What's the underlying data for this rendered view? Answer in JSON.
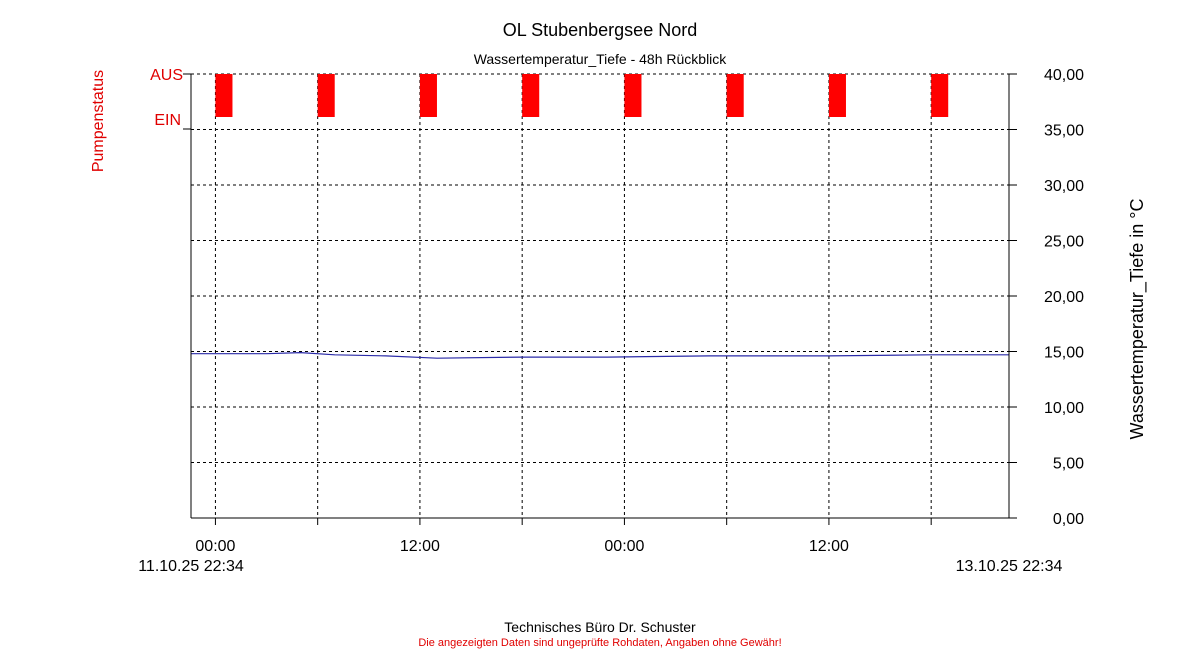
{
  "chart_data": {
    "type": "line",
    "title": "OL Stubenbergsee Nord",
    "subtitle": "Wassertemperatur_Tiefe - 48h Rückblick",
    "ylabel_right": "Wassertemperatur_Tiefe in °C",
    "ylabel_left": "Pumpenstatus",
    "ylim": [
      0,
      40
    ],
    "yticks": [
      "0,00",
      "5,00",
      "10,00",
      "15,00",
      "20,00",
      "25,00",
      "30,00",
      "35,00",
      "40,00"
    ],
    "xlim": [
      "11.10.25 22:34",
      "13.10.25 22:34"
    ],
    "xticks": [
      "00:00",
      "12:00",
      "00:00",
      "12:00"
    ],
    "x_start_label": "11.10.25 22:34",
    "x_end_label": "13.10.25 22:34",
    "grid": true,
    "status_labels": {
      "off": "AUS",
      "on": "EIN"
    },
    "series": [
      {
        "color": "#2a2aa8",
        "x": [
          "11.10.25 22:34",
          "12.10.25 03:00",
          "12.10.25 05:00",
          "12.10.25 07:00",
          "12.10.25 10:00",
          "12.10.25 13:00",
          "12.10.25 18:00",
          "12.10.25 23:00",
          "13.10.25 05:00",
          "13.10.25 12:00",
          "13.10.25 18:00",
          "13.10.25 22:34"
        ],
        "values": [
          14.8,
          14.8,
          14.9,
          14.7,
          14.6,
          14.4,
          14.5,
          14.5,
          14.6,
          14.6,
          14.7,
          14.7
        ]
      }
    ],
    "pump_status": {
      "color": "#ff0000",
      "description_values": "state per interval",
      "intervals": [
        {
          "start": "12.10.25 00:00",
          "end": "12.10.25 01:00",
          "state": "EIN"
        },
        {
          "start": "12.10.25 06:00",
          "end": "12.10.25 07:00",
          "state": "EIN"
        },
        {
          "start": "12.10.25 12:00",
          "end": "12.10.25 13:00",
          "state": "EIN"
        },
        {
          "start": "12.10.25 18:00",
          "end": "12.10.25 19:00",
          "state": "EIN"
        },
        {
          "start": "13.10.25 00:00",
          "end": "13.10.25 01:00",
          "state": "EIN"
        },
        {
          "start": "13.10.25 06:00",
          "end": "13.10.25 07:00",
          "state": "EIN"
        },
        {
          "start": "13.10.25 12:00",
          "end": "13.10.25 13:00",
          "state": "EIN"
        },
        {
          "start": "13.10.25 18:00",
          "end": "13.10.25 19:00",
          "state": "EIN"
        }
      ]
    }
  },
  "footer": {
    "company": "Technisches Büro Dr. Schuster",
    "disclaimer": "Die angezeigten Daten sind ungeprüfte Rohdaten, Angaben ohne Gewähr!",
    "disclaimer_color": "#e00000"
  },
  "colors": {
    "status_text": "#e00000"
  }
}
